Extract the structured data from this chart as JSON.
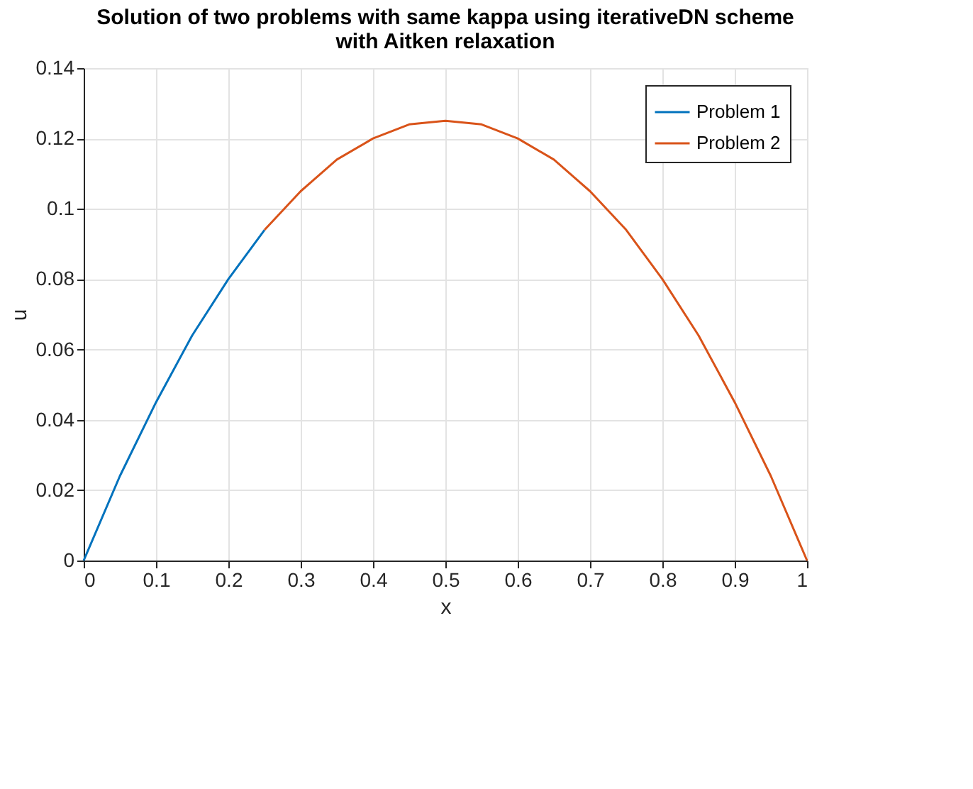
{
  "chart_data": {
    "type": "line",
    "title": [
      "Solution of two problems with same kappa using iterativeDN scheme",
      "with Aitken relaxation"
    ],
    "xlabel": "x",
    "ylabel": "u",
    "series": [
      {
        "name": "Problem 1",
        "color": "#0072bd",
        "x": [
          0,
          0.05,
          0.1,
          0.15,
          0.2,
          0.25
        ],
        "values": [
          0,
          0.024,
          0.045,
          0.064,
          0.08,
          0.094
        ]
      },
      {
        "name": "Problem 2",
        "color": "#d95319",
        "x": [
          0.25,
          0.3,
          0.35,
          0.4,
          0.45,
          0.5,
          0.55,
          0.6,
          0.65,
          0.7,
          0.75,
          0.8,
          0.85,
          0.9,
          0.95,
          1
        ],
        "values": [
          0.094,
          0.105,
          0.114,
          0.12,
          0.124,
          0.125,
          0.124,
          0.12,
          0.114,
          0.105,
          0.094,
          0.08,
          0.064,
          0.045,
          0.024,
          0
        ]
      }
    ],
    "xlim": [
      0,
      1
    ],
    "xticks": [
      0,
      0.1,
      0.2,
      0.3,
      0.4,
      0.5,
      0.6,
      0.7,
      0.8,
      0.9,
      1
    ],
    "ylim": [
      0,
      0.14
    ],
    "yticks": [
      0,
      0.02,
      0.04,
      0.06,
      0.08,
      0.1,
      0.12,
      0.14
    ],
    "grid": true,
    "legend": "top right",
    "marker": "none",
    "line_style": "solid"
  }
}
